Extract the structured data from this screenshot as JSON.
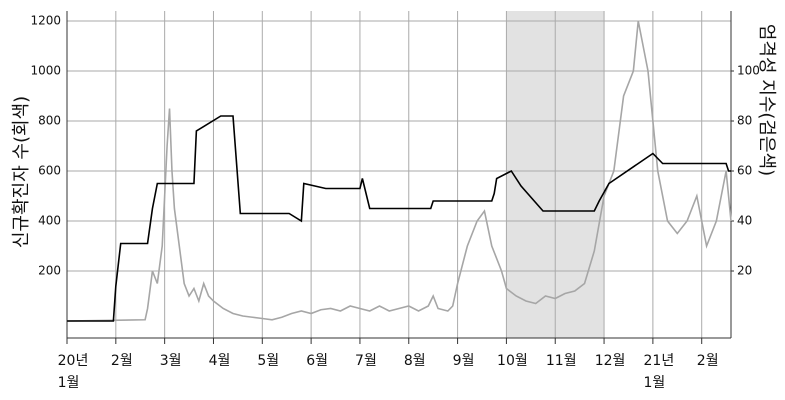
{
  "chart_data": {
    "type": "line",
    "y_label": "신규확진자 수(회색)",
    "y2_label": "엄격성 지수(검은색)",
    "xlim": [
      0,
      13.6
    ],
    "xticks": [
      {
        "value": 0,
        "label": "20년\n1월"
      },
      {
        "value": 1,
        "label": "2월"
      },
      {
        "value": 2,
        "label": "3월"
      },
      {
        "value": 3,
        "label": "4월"
      },
      {
        "value": 4,
        "label": "5월"
      },
      {
        "value": 5,
        "label": "6월"
      },
      {
        "value": 6,
        "label": "7월"
      },
      {
        "value": 7,
        "label": "8월"
      },
      {
        "value": 8,
        "label": "9월"
      },
      {
        "value": 9,
        "label": "10월"
      },
      {
        "value": 10,
        "label": "11월"
      },
      {
        "value": 11,
        "label": "12월"
      },
      {
        "value": 12,
        "label": "21년\n1월"
      },
      {
        "value": 13,
        "label": "2월"
      }
    ],
    "ylim": [
      -68,
      1240
    ],
    "yticks": [
      200,
      400,
      600,
      800,
      1000,
      1200
    ],
    "y2lim": [
      -6.8,
      124
    ],
    "y2ticks": [
      20,
      40,
      60,
      80,
      100
    ],
    "grid": true,
    "shaded_span": [
      9,
      11
    ],
    "shade_color": "#e2e2e2",
    "series": [
      {
        "name": "신규확진자 수",
        "color": "#a6a6a6",
        "axis": "y",
        "x": [
          0,
          1.6,
          1.65,
          1.75,
          1.85,
          1.95,
          2.0,
          2.05,
          2.1,
          2.15,
          2.2,
          2.3,
          2.4,
          2.5,
          2.6,
          2.7,
          2.8,
          2.9,
          3.0,
          3.2,
          3.4,
          3.6,
          3.8,
          4.0,
          4.2,
          4.4,
          4.6,
          4.8,
          5.0,
          5.2,
          5.4,
          5.6,
          5.8,
          6.0,
          6.2,
          6.4,
          6.6,
          6.8,
          7.0,
          7.2,
          7.4,
          7.5,
          7.6,
          7.8,
          7.9,
          8.0,
          8.2,
          8.4,
          8.55,
          8.7,
          8.9,
          9.0,
          9.2,
          9.4,
          9.6,
          9.8,
          10.0,
          10.2,
          10.4,
          10.6,
          10.8,
          11.0,
          11.2,
          11.4,
          11.6,
          11.7,
          11.8,
          11.9,
          12.0,
          12.1,
          12.3,
          12.5,
          12.7,
          12.9,
          13.1,
          13.3,
          13.5,
          13.6
        ],
        "values": [
          0,
          5,
          50,
          200,
          150,
          300,
          500,
          700,
          850,
          600,
          450,
          300,
          150,
          100,
          130,
          80,
          150,
          100,
          80,
          50,
          30,
          20,
          15,
          10,
          5,
          15,
          30,
          40,
          30,
          45,
          50,
          40,
          60,
          50,
          40,
          60,
          40,
          50,
          60,
          40,
          60,
          100,
          50,
          40,
          60,
          150,
          300,
          400,
          440,
          300,
          200,
          130,
          100,
          80,
          70,
          100,
          90,
          110,
          120,
          150,
          280,
          500,
          600,
          900,
          1000,
          1200,
          1100,
          1000,
          800,
          600,
          400,
          350,
          400,
          500,
          300,
          400,
          600,
          400
        ]
      },
      {
        "name": "엄격성 지수",
        "color": "#000000",
        "axis": "y2",
        "x": [
          0,
          0.95,
          1.0,
          1.1,
          1.65,
          1.75,
          1.85,
          2.6,
          2.65,
          3.15,
          3.4,
          3.55,
          4.55,
          4.8,
          4.85,
          5.3,
          6.0,
          6.05,
          6.2,
          7.45,
          7.5,
          8.7,
          8.75,
          8.8,
          9.1,
          9.3,
          9.75,
          10.8,
          10.9,
          11.1,
          11.7,
          12.0,
          12.2,
          13.5,
          13.55,
          13.6
        ],
        "values": [
          0,
          0,
          14,
          31,
          31,
          45,
          55,
          55,
          76,
          82,
          82,
          43,
          43,
          40,
          55,
          53,
          53,
          57,
          45,
          45,
          48,
          48,
          51,
          57,
          60,
          54,
          44,
          44,
          48,
          55,
          63,
          67,
          63,
          63,
          60,
          60
        ]
      }
    ]
  }
}
